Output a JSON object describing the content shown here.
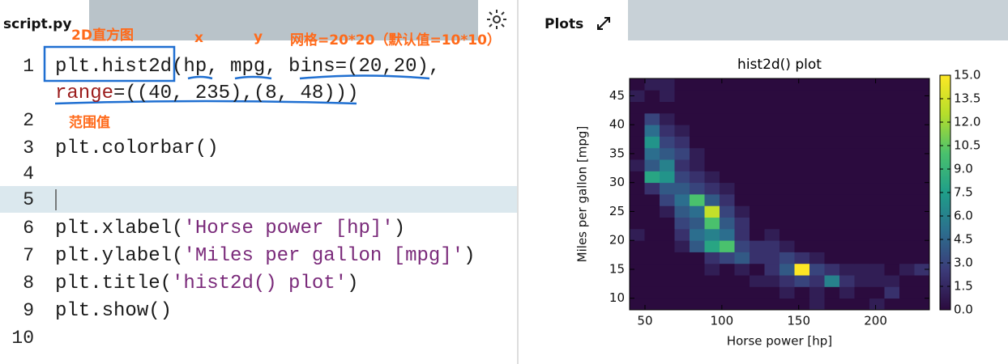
{
  "editor": {
    "filename": "script.py",
    "lines": [
      {
        "number": "1",
        "segments": [
          {
            "text": "plt.hist2d(hp, mpg, bins=(20,20),"
          }
        ]
      },
      {
        "segments": [
          {
            "text": "range",
            "color": "#9b1c1c"
          },
          {
            "text": "=((40, 235),(8, 48)))"
          }
        ]
      },
      {
        "number": "2",
        "segments": []
      },
      {
        "number": "3",
        "segments": [
          {
            "text": "plt.colorbar()"
          }
        ]
      },
      {
        "number": "4",
        "segments": []
      },
      {
        "number": "5",
        "segments": [],
        "active": true
      },
      {
        "number": "6",
        "segments": [
          {
            "text": "plt.xlabel("
          },
          {
            "text": "'Horse power [hp]'",
            "color": "#7a2a7a"
          },
          {
            "text": ")"
          }
        ]
      },
      {
        "number": "7",
        "segments": [
          {
            "text": "plt.ylabel("
          },
          {
            "text": "'Miles per gallon [mpg]'",
            "color": "#7a2a7a"
          },
          {
            "text": ")"
          }
        ]
      },
      {
        "number": "8",
        "segments": [
          {
            "text": "plt.title("
          },
          {
            "text": "'hist2d() plot'",
            "color": "#7a2a7a"
          },
          {
            "text": ")"
          }
        ]
      },
      {
        "number": "9",
        "segments": [
          {
            "text": "plt.show()"
          }
        ]
      },
      {
        "number": "10",
        "segments": []
      }
    ],
    "annotations": [
      "2D直方图",
      "x",
      "y",
      "网格=20*20（默认值=10*10）",
      "范围值"
    ]
  },
  "plots": {
    "title": "Plots"
  },
  "chart_data": {
    "type": "hist2d",
    "title": "hist2d() plot",
    "xlabel": "Horse power [hp]",
    "ylabel": "Miles per gallon [mpg]",
    "xlim": [
      40,
      235
    ],
    "ylim": [
      8,
      48
    ],
    "xticks": [
      50,
      100,
      150,
      200
    ],
    "yticks": [
      10,
      15,
      20,
      25,
      30,
      35,
      40,
      45
    ],
    "clim": [
      0,
      15
    ],
    "cticks": [
      {
        "value": 0,
        "label": "0.0"
      },
      {
        "value": 1.5,
        "label": "1.5"
      },
      {
        "value": 3,
        "label": "3.0"
      },
      {
        "value": 4.5,
        "label": "4.5"
      },
      {
        "value": 6,
        "label": "6.0"
      },
      {
        "value": 7.5,
        "label": "7.5"
      },
      {
        "value": 9,
        "label": "9.0"
      },
      {
        "value": 10.5,
        "label": "10.5"
      },
      {
        "value": 12,
        "label": "12.0"
      },
      {
        "value": 13.5,
        "label": "13.5"
      },
      {
        "value": 15,
        "label": "15.0"
      }
    ],
    "colormap": [
      "#2b0b3e",
      "#3b3a78",
      "#2c6e8e",
      "#1f9e89",
      "#4ac16d",
      "#b5de2b",
      "#fde725"
    ],
    "counts": [
      [
        0,
        0,
        0,
        0,
        0,
        0,
        0,
        0,
        0,
        0,
        0,
        0,
        1,
        0,
        0,
        0,
        1,
        0,
        0,
        0
      ],
      [
        0,
        0,
        0,
        0,
        0,
        0,
        0,
        0,
        0,
        0,
        1,
        0,
        1,
        0,
        1,
        0,
        0,
        2,
        0,
        0
      ],
      [
        0,
        0,
        0,
        0,
        0,
        0,
        0,
        0,
        1,
        1,
        2,
        3,
        2,
        6,
        2,
        1,
        1,
        1,
        0,
        0
      ],
      [
        0,
        0,
        0,
        0,
        0,
        1,
        0,
        1,
        0,
        2,
        4,
        15,
        3,
        2,
        1,
        1,
        1,
        0,
        1,
        2
      ],
      [
        0,
        0,
        0,
        0,
        0,
        2,
        3,
        4,
        2,
        2,
        3,
        2,
        1,
        0,
        0,
        0,
        0,
        0,
        0,
        0
      ],
      [
        0,
        0,
        0,
        1,
        4,
        8,
        10,
        3,
        2,
        2,
        1,
        0,
        0,
        0,
        0,
        0,
        0,
        0,
        0,
        0
      ],
      [
        1,
        0,
        0,
        2,
        5,
        6,
        5,
        2,
        0,
        1,
        0,
        0,
        0,
        0,
        0,
        0,
        0,
        0,
        0,
        0
      ],
      [
        0,
        0,
        0,
        3,
        4,
        10,
        4,
        2,
        0,
        0,
        0,
        0,
        0,
        0,
        0,
        0,
        0,
        0,
        0,
        0
      ],
      [
        0,
        0,
        1,
        4,
        5,
        13,
        3,
        1,
        0,
        0,
        0,
        0,
        0,
        0,
        0,
        0,
        0,
        0,
        0,
        0
      ],
      [
        0,
        0,
        3,
        5,
        10,
        4,
        2,
        0,
        0,
        0,
        0,
        0,
        0,
        0,
        0,
        0,
        0,
        0,
        0,
        0
      ],
      [
        0,
        2,
        4,
        4,
        3,
        2,
        1,
        0,
        0,
        0,
        0,
        0,
        0,
        0,
        0,
        0,
        0,
        0,
        0,
        0
      ],
      [
        0,
        8,
        7,
        3,
        2,
        1,
        0,
        0,
        0,
        0,
        0,
        0,
        0,
        0,
        0,
        0,
        0,
        0,
        0,
        0
      ],
      [
        1,
        4,
        6,
        2,
        1,
        0,
        0,
        0,
        0,
        0,
        0,
        0,
        0,
        0,
        0,
        0,
        0,
        0,
        0,
        0
      ],
      [
        0,
        5,
        4,
        3,
        1,
        0,
        0,
        0,
        0,
        0,
        0,
        0,
        0,
        0,
        0,
        0,
        0,
        0,
        0,
        0
      ],
      [
        0,
        7,
        3,
        2,
        0,
        0,
        0,
        0,
        0,
        0,
        0,
        0,
        0,
        0,
        0,
        0,
        0,
        0,
        0,
        0
      ],
      [
        0,
        5,
        2,
        1,
        0,
        0,
        0,
        0,
        0,
        0,
        0,
        0,
        0,
        0,
        0,
        0,
        0,
        0,
        0,
        0
      ],
      [
        0,
        3,
        1,
        0,
        0,
        0,
        0,
        0,
        0,
        0,
        0,
        0,
        0,
        0,
        0,
        0,
        0,
        0,
        0,
        0
      ],
      [
        0,
        0,
        0,
        0,
        0,
        0,
        0,
        0,
        0,
        0,
        0,
        0,
        0,
        0,
        0,
        0,
        0,
        0,
        0,
        0
      ],
      [
        1,
        0,
        1,
        0,
        0,
        0,
        0,
        0,
        0,
        0,
        0,
        0,
        0,
        0,
        0,
        0,
        0,
        0,
        0,
        0
      ],
      [
        0,
        1,
        1,
        0,
        0,
        0,
        0,
        0,
        0,
        0,
        0,
        0,
        0,
        0,
        0,
        0,
        0,
        0,
        0,
        0
      ]
    ]
  }
}
